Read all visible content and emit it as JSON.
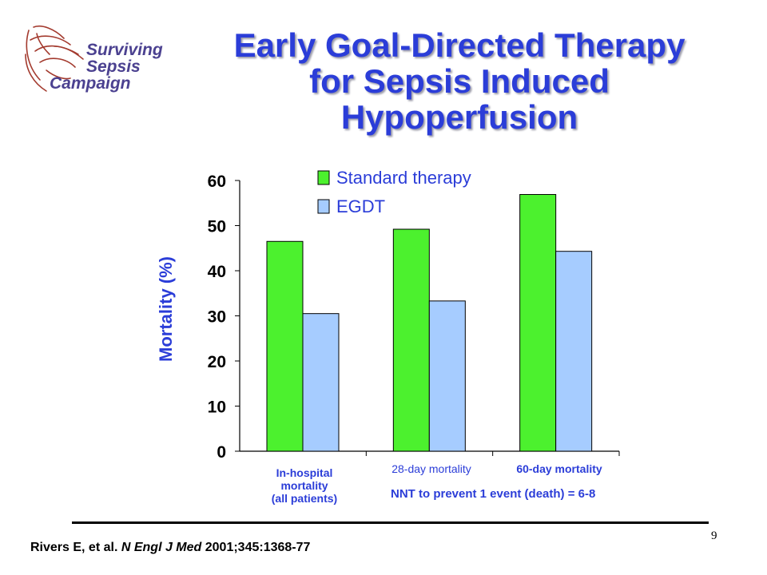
{
  "logo": {
    "line1": "Surviving",
    "line2": "Sepsis",
    "line3": "Campaign",
    "icon": "hands-icon"
  },
  "title": {
    "line1": "Early Goal-Directed Therapy",
    "line2": "for Sepsis Induced",
    "line3": "Hypoperfusion"
  },
  "chart_data": {
    "type": "bar",
    "categories": [
      [
        "In-hospital",
        "mortality",
        "(all patients)"
      ],
      [
        "28-day mortality"
      ],
      [
        "60-day mortality"
      ]
    ],
    "series": [
      {
        "name": "Standard therapy",
        "values": [
          46.5,
          49.2,
          56.9
        ],
        "color": "#4cf12e"
      },
      {
        "name": "EGDT",
        "values": [
          30.5,
          33.3,
          44.3
        ],
        "color": "#a6ccff"
      }
    ],
    "ylabel": "Mortality (%)",
    "ylim": [
      0,
      60
    ],
    "yticks": [
      0,
      10,
      20,
      30,
      40,
      50,
      60
    ],
    "grid": false,
    "legend": "top"
  },
  "nnt_note": "NNT to prevent 1 event (death) = 6-8",
  "citation": {
    "authors": "Rivers E, et al. ",
    "journal": "N Engl J Med",
    "ref": " 2001;345:1368-77"
  },
  "page_number": "9",
  "colors": {
    "title": "#2b3dd8",
    "logo_text": "#4b4190",
    "logo_icon": "#a33a2e"
  }
}
